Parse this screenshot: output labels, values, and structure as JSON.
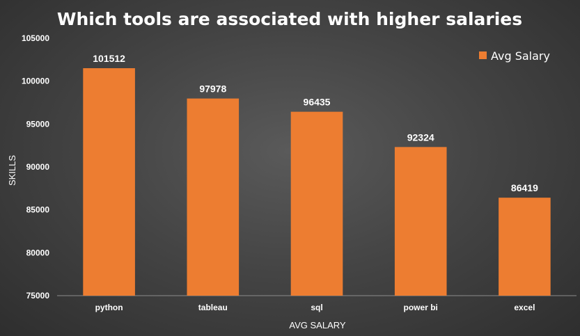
{
  "chart_data": {
    "type": "bar",
    "title": "Which tools are associated with higher salaries",
    "xlabel": "AVG SALARY",
    "ylabel": "SKILLS",
    "categories": [
      "python",
      "tableau",
      "sql",
      "power bi",
      "excel"
    ],
    "series": [
      {
        "name": "Avg Salary",
        "values": [
          101512,
          97978,
          96435,
          92324,
          86419
        ]
      }
    ],
    "data_labels": [
      "101512",
      "97978",
      "96435",
      "92324",
      "86419"
    ],
    "ylim": [
      75000,
      105000
    ],
    "yticks": [
      75000,
      80000,
      85000,
      90000,
      95000,
      100000,
      105000
    ],
    "ytick_labels": [
      "75000",
      "80000",
      "85000",
      "90000",
      "95000",
      "100000",
      "105000"
    ],
    "grid": false,
    "legend_position": "top-right",
    "colors": {
      "bar": "#ED7D31",
      "text": "#FFFFFF",
      "axis": "#8C8C8C"
    }
  }
}
